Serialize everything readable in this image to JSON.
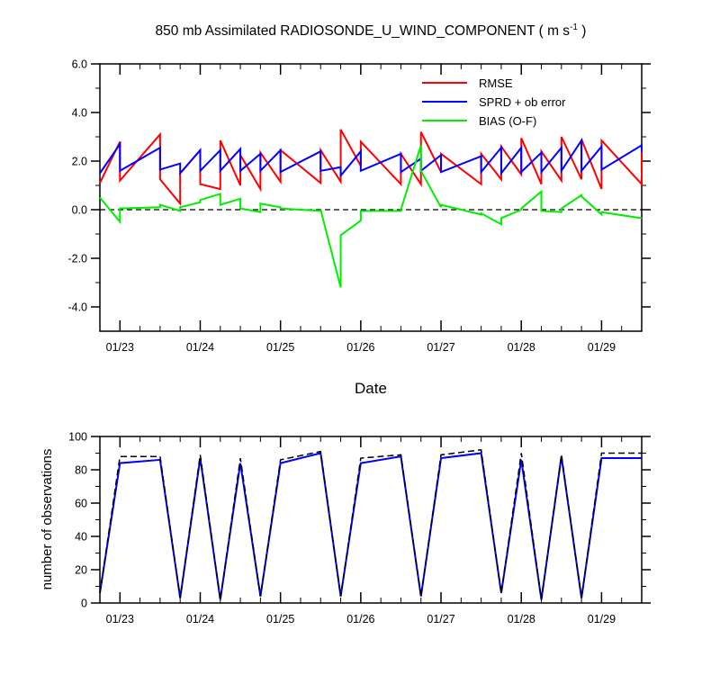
{
  "title": {
    "main": "850 mb Assimilated RADIOSONDE_U_WIND_COMPONENT ( m s",
    "superscript": "-1",
    "close": " )"
  },
  "top_panel": {
    "xlabel": "Date",
    "y_tick_labels": [
      "6.0",
      "4.0",
      "2.0",
      "0.0",
      "-2.0",
      "-4.0"
    ],
    "x_tick_labels": [
      "01/23",
      "01/24",
      "01/25",
      "01/26",
      "01/27",
      "01/28",
      "01/29"
    ],
    "legend": [
      "RMSE",
      "SPRD + ob error",
      "BIAS (O-F)"
    ]
  },
  "bottom_panel": {
    "ylabel": "number of observations",
    "y_tick_labels": [
      "100",
      "80",
      "60",
      "40",
      "20",
      "0"
    ],
    "x_tick_labels": [
      "01/23",
      "01/24",
      "01/25",
      "01/26",
      "01/27",
      "01/28",
      "01/29"
    ]
  },
  "chart_data": [
    {
      "type": "line",
      "title": "850 mb Assimilated RADIOSONDE_U_WIND_COMPONENT ( m s-1 )",
      "xlabel": "Date",
      "ylabel": "",
      "x_unit": "days since 01/22 00Z",
      "xlim": [
        0.75,
        7.5
      ],
      "ylim": [
        -5.0,
        6.0
      ],
      "grid": false,
      "zero_line": "dashed",
      "legend_position": "top-right",
      "x_ticks": [
        1,
        2,
        3,
        4,
        5,
        6,
        7
      ],
      "x_tick_labels": [
        "01/23",
        "01/24",
        "01/25",
        "01/26",
        "01/27",
        "01/28",
        "01/29"
      ],
      "series": [
        {
          "name": "RMSE",
          "color": "#ff0000",
          "x": [
            0.75,
            1.0,
            1.0,
            1.5,
            1.5,
            1.75,
            1.75,
            2.0,
            2.0,
            2.25,
            2.25,
            2.5,
            2.5,
            2.75,
            2.75,
            3.0,
            3.0,
            3.5,
            3.5,
            3.75,
            3.75,
            4.0,
            4.0,
            4.5,
            4.5,
            4.75,
            4.75,
            5.0,
            5.0,
            5.5,
            5.5,
            5.75,
            5.75,
            6.0,
            6.0,
            6.25,
            6.25,
            6.5,
            6.5,
            6.75,
            6.75,
            7.0,
            7.0,
            7.5,
            7.5
          ],
          "values": [
            1.1,
            2.8,
            1.2,
            3.1,
            1.25,
            0.25,
            1.5,
            2.45,
            1.05,
            0.85,
            2.85,
            1.0,
            2.25,
            0.85,
            2.35,
            1.15,
            2.45,
            1.1,
            2.45,
            1.15,
            3.3,
            1.8,
            2.8,
            1.05,
            2.3,
            1.05,
            3.2,
            1.55,
            2.3,
            1.05,
            2.3,
            1.25,
            2.6,
            1.45,
            2.95,
            1.05,
            2.4,
            1.2,
            3.0,
            1.25,
            2.9,
            0.85,
            2.85,
            1.05,
            2.35
          ]
        },
        {
          "name": "SPRD + ob error",
          "color": "#0000ff",
          "x": [
            0.75,
            1.0,
            1.0,
            1.5,
            1.5,
            1.75,
            1.75,
            2.0,
            2.0,
            2.25,
            2.25,
            2.5,
            2.5,
            2.75,
            2.75,
            3.0,
            3.0,
            3.5,
            3.5,
            3.75,
            3.75,
            4.0,
            4.0,
            4.5,
            4.5,
            4.75,
            4.75,
            5.0,
            5.0,
            5.5,
            5.5,
            5.75,
            5.75,
            6.0,
            6.0,
            6.25,
            6.25,
            6.5,
            6.5,
            6.75,
            6.75,
            7.0,
            7.0,
            7.5,
            7.5
          ],
          "values": [
            1.5,
            2.7,
            1.6,
            2.55,
            1.65,
            1.9,
            1.5,
            2.45,
            1.6,
            2.45,
            1.6,
            2.5,
            1.6,
            2.3,
            1.6,
            2.45,
            1.55,
            2.4,
            1.6,
            1.75,
            1.4,
            2.4,
            1.6,
            2.3,
            1.55,
            2.1,
            1.6,
            2.25,
            1.55,
            2.2,
            1.55,
            2.55,
            1.5,
            2.55,
            1.55,
            2.35,
            1.55,
            2.55,
            1.6,
            2.85,
            1.6,
            2.6,
            1.65,
            2.65,
            2.35
          ]
        },
        {
          "name": "BIAS (O-F)",
          "color": "#00ee00",
          "x": [
            0.75,
            1.0,
            1.0,
            1.5,
            1.5,
            1.75,
            1.75,
            2.0,
            2.0,
            2.25,
            2.25,
            2.5,
            2.5,
            2.75,
            2.75,
            3.0,
            3.0,
            3.5,
            3.5,
            3.75,
            3.75,
            4.0,
            4.0,
            4.5,
            4.5,
            4.75,
            4.75,
            5.0,
            5.0,
            5.5,
            5.5,
            5.75,
            5.75,
            6.0,
            6.0,
            6.25,
            6.25,
            6.5,
            6.5,
            6.75,
            6.75,
            7.0,
            7.0,
            7.5,
            7.5
          ],
          "values": [
            0.5,
            -0.5,
            0.05,
            0.1,
            0.2,
            -0.05,
            0.1,
            0.3,
            0.4,
            0.65,
            0.2,
            0.45,
            0.05,
            -0.1,
            0.25,
            0.1,
            0.05,
            -0.05,
            0.0,
            -3.2,
            -1.05,
            -0.45,
            -0.05,
            -0.05,
            0.0,
            2.65,
            1.6,
            0.1,
            0.2,
            -0.2,
            -0.15,
            -0.6,
            -0.35,
            0.0,
            0.05,
            0.75,
            -0.05,
            -0.1,
            0.05,
            0.6,
            0.55,
            -0.2,
            -0.1,
            -0.35,
            -0.35
          ]
        }
      ]
    },
    {
      "type": "line",
      "title": "",
      "xlabel": "",
      "ylabel": "number of observations",
      "x_unit": "days since 01/22 00Z",
      "xlim": [
        0.75,
        7.5
      ],
      "ylim": [
        0,
        100
      ],
      "grid": false,
      "x_ticks": [
        1,
        2,
        3,
        4,
        5,
        6,
        7
      ],
      "x_tick_labels": [
        "01/23",
        "01/24",
        "01/25",
        "01/26",
        "01/27",
        "01/28",
        "01/29"
      ],
      "series": [
        {
          "name": "number of observations (solid)",
          "color": "#0000ff",
          "style": "solid",
          "x": [
            0.75,
            1.0,
            1.5,
            1.75,
            2.0,
            2.25,
            2.5,
            2.75,
            3.0,
            3.5,
            3.75,
            4.0,
            4.5,
            4.75,
            5.0,
            5.5,
            5.75,
            6.0,
            6.25,
            6.5,
            6.75,
            7.0,
            7.5
          ],
          "values": [
            6,
            84,
            86,
            3,
            87,
            2,
            84,
            4,
            84,
            90,
            4,
            84,
            88,
            4,
            87,
            90,
            6,
            86,
            2,
            88,
            3,
            87,
            87
          ]
        },
        {
          "name": "number of observations (dashed)",
          "color": "#000000",
          "style": "dashed",
          "x": [
            0.75,
            1.0,
            1.5,
            1.75,
            2.0,
            2.25,
            2.5,
            2.75,
            3.0,
            3.5,
            3.75,
            4.0,
            4.5,
            4.75,
            5.0,
            5.5,
            5.75,
            6.0,
            6.25,
            6.5,
            6.75,
            7.0,
            7.5
          ],
          "values": [
            6,
            88,
            88,
            3,
            89,
            2,
            87,
            4,
            86,
            91,
            4,
            87,
            89,
            4,
            89,
            92,
            6,
            90,
            2,
            89,
            3,
            90,
            90
          ]
        }
      ]
    }
  ]
}
